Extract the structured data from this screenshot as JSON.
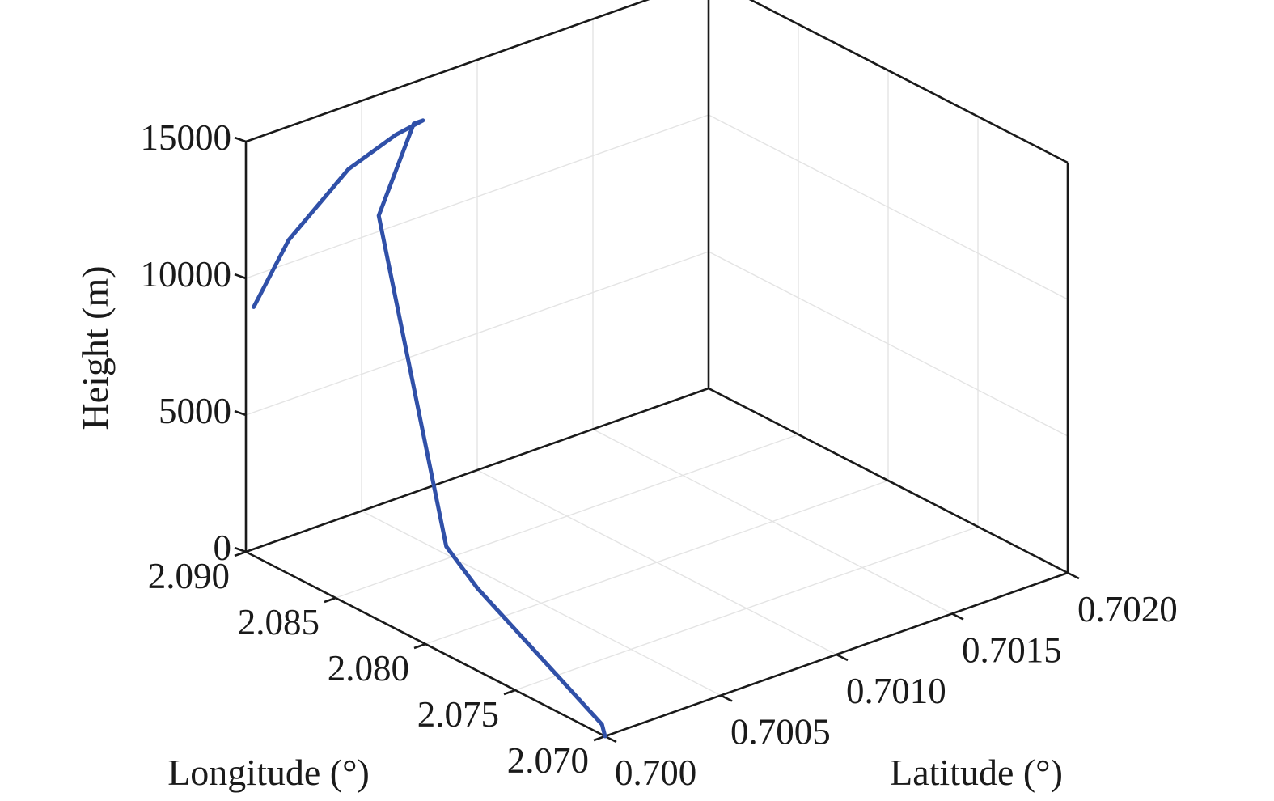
{
  "chart_data": {
    "type": "line",
    "projection": "3d",
    "title": "",
    "xlabel": "Latitude (°)",
    "ylabel": "Longitude (°)",
    "zlabel": "Height (m)",
    "xlim": [
      0.7,
      0.702
    ],
    "ylim": [
      2.07,
      2.09
    ],
    "zlim": [
      0,
      15000
    ],
    "xticks": [
      "0.700",
      "0.7005",
      "0.7010",
      "0.7015",
      "0.7020"
    ],
    "yticks": [
      "2.070",
      "2.075",
      "2.080",
      "2.085",
      "2.090"
    ],
    "zticks": [
      "0",
      "5000",
      "10000",
      "15000"
    ],
    "grid": true,
    "legend": "none",
    "line_color": "#3050a8",
    "series": [
      {
        "latitude": [
          0.7,
          0.70001,
          0.70007,
          0.70009,
          0.70038,
          0.70071,
          0.70075,
          0.70061,
          0.70035,
          0.69996,
          0.6997
        ],
        "longitude": [
          2.07,
          2.0703,
          2.078,
          2.08,
          2.0875,
          2.0898,
          2.0898,
          2.0895,
          2.0888,
          2.0871,
          2.0857
        ],
        "height": [
          0,
          300,
          2500,
          3300,
          12000,
          13600,
          13600,
          13600,
          13350,
          12500,
          11300
        ]
      }
    ]
  }
}
